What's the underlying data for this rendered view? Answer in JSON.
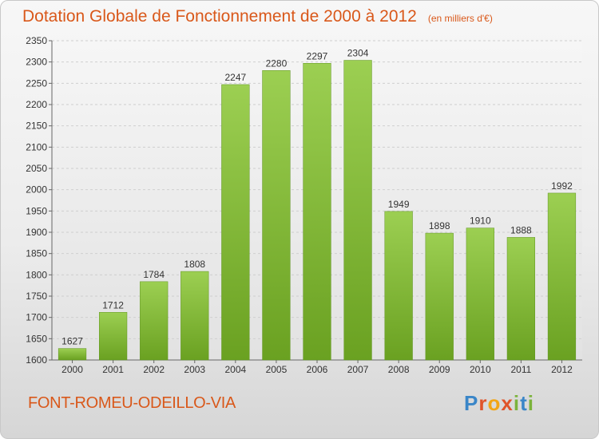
{
  "header": {
    "title": "Dotation Globale de Fonctionnement de 2000 à 2012",
    "subtitle": "(en milliers d'€)"
  },
  "footer": {
    "commune": "FONT-ROMEU-ODEILLO-VIA",
    "logo": "Proxiti"
  },
  "chart_data": {
    "type": "bar",
    "title": "Dotation Globale de Fonctionnement de 2000 à 2012",
    "subtitle": "(en milliers d'€)",
    "xlabel": "",
    "ylabel": "",
    "categories": [
      "2000",
      "2001",
      "2002",
      "2003",
      "2004",
      "2005",
      "2006",
      "2007",
      "2008",
      "2009",
      "2010",
      "2011",
      "2012"
    ],
    "values": [
      1627,
      1712,
      1784,
      1808,
      2247,
      2280,
      2297,
      2304,
      1949,
      1898,
      1910,
      1888,
      1992
    ],
    "ylim": [
      1600,
      2350
    ],
    "yticks": [
      1600,
      1650,
      1700,
      1750,
      1800,
      1850,
      1900,
      1950,
      2000,
      2050,
      2100,
      2150,
      2200,
      2250,
      2300,
      2350
    ],
    "grid": true,
    "data_labels": true,
    "bar_color": "#8cc63f",
    "bar_color_dark": "#6aa121",
    "title_color": "#d9581a"
  }
}
